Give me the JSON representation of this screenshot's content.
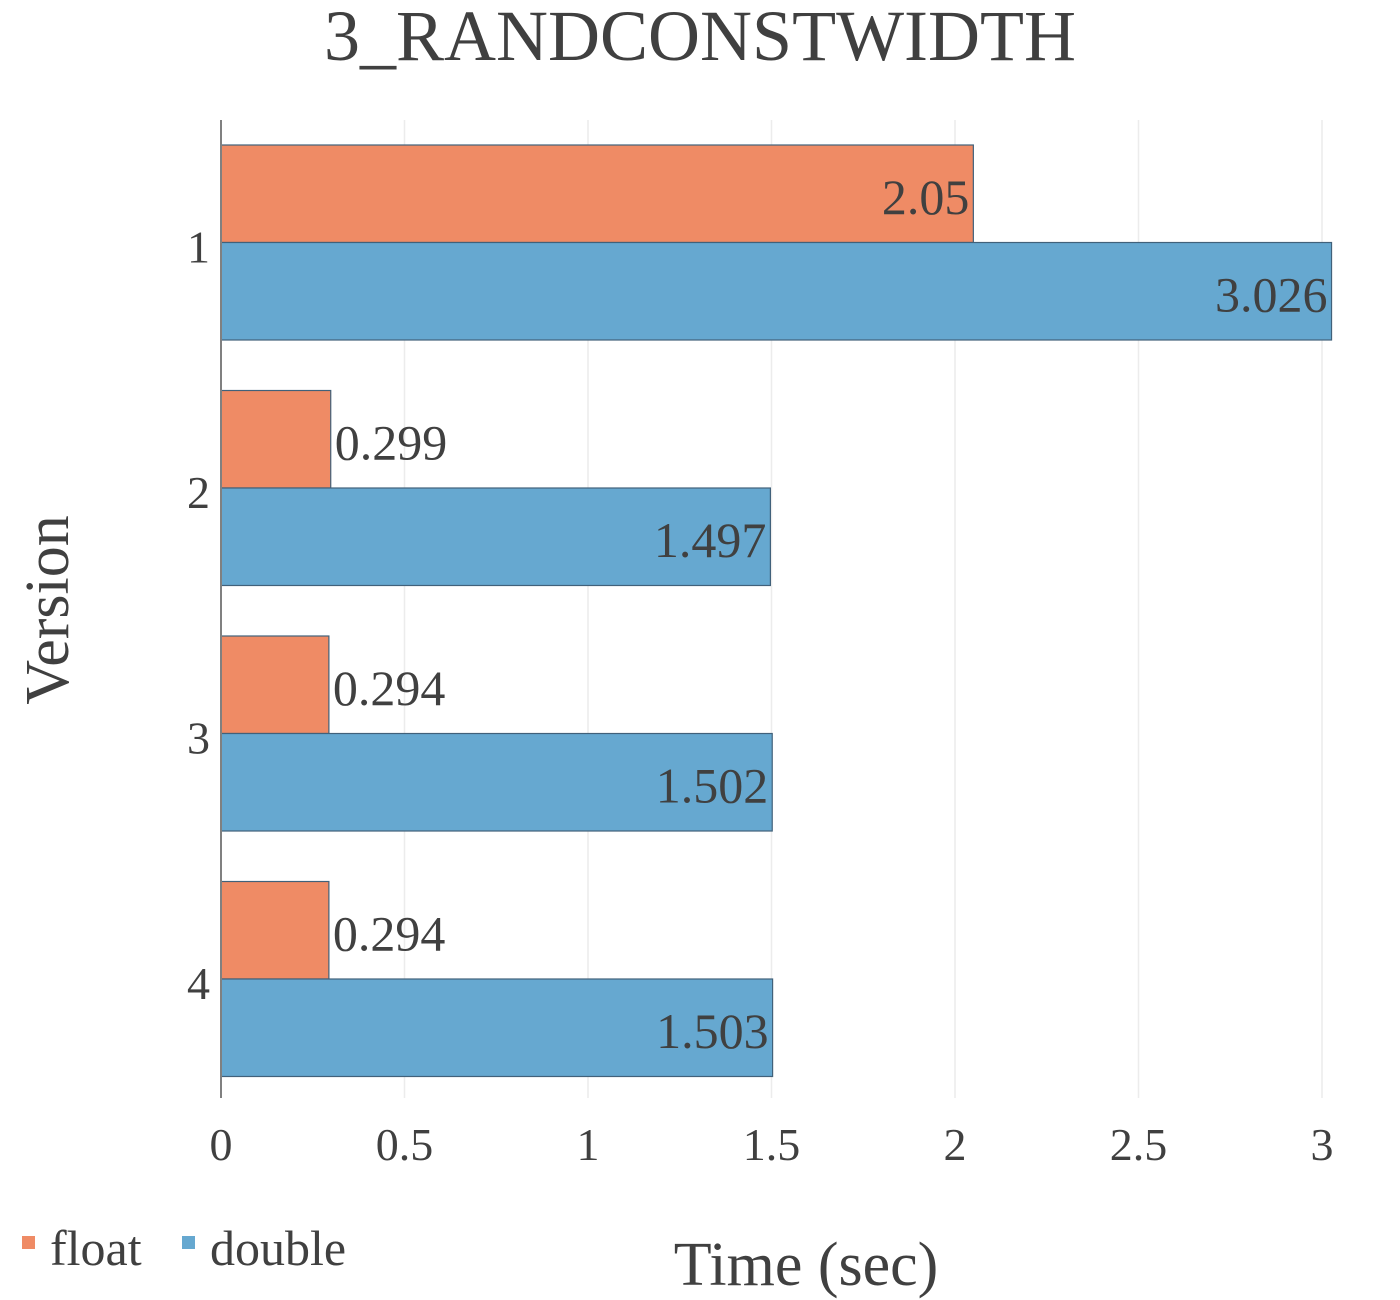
{
  "chart_data": {
    "type": "bar",
    "orientation": "horizontal",
    "title": "3_RANDCONSTWIDTH",
    "xlabel": "Time (sec)",
    "ylabel": "Version",
    "categories": [
      "1",
      "2",
      "3",
      "4"
    ],
    "series": [
      {
        "name": "float",
        "color": "#ef8b65",
        "values": [
          2.05,
          0.299,
          0.294,
          0.294
        ]
      },
      {
        "name": "double",
        "color": "#66a8d0",
        "values": [
          3.026,
          1.497,
          1.502,
          1.503
        ]
      }
    ],
    "data_labels": {
      "float": [
        "2.05",
        "0.299",
        "0.294",
        "0.294"
      ],
      "double": [
        "3.026",
        "1.497",
        "1.502",
        "1.503"
      ]
    },
    "xlim": [
      0,
      3
    ],
    "xticks": [
      "0",
      "0.5",
      "1",
      "1.5",
      "2",
      "2.5",
      "3"
    ],
    "grid": true,
    "legend_position": "bottom-left"
  }
}
